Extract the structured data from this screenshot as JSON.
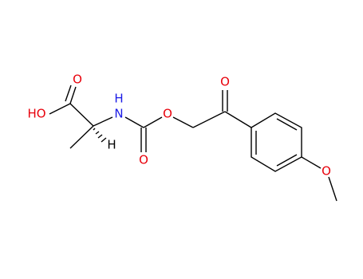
{
  "atoms": [
    {
      "label": "HO"
    },
    {
      "label": "O"
    },
    {
      "label": "H"
    },
    {
      "label": "N"
    },
    {
      "label": "H"
    },
    {
      "label": "O"
    },
    {
      "label": "O"
    },
    {
      "label": "O"
    },
    {
      "label": "O"
    }
  ]
}
